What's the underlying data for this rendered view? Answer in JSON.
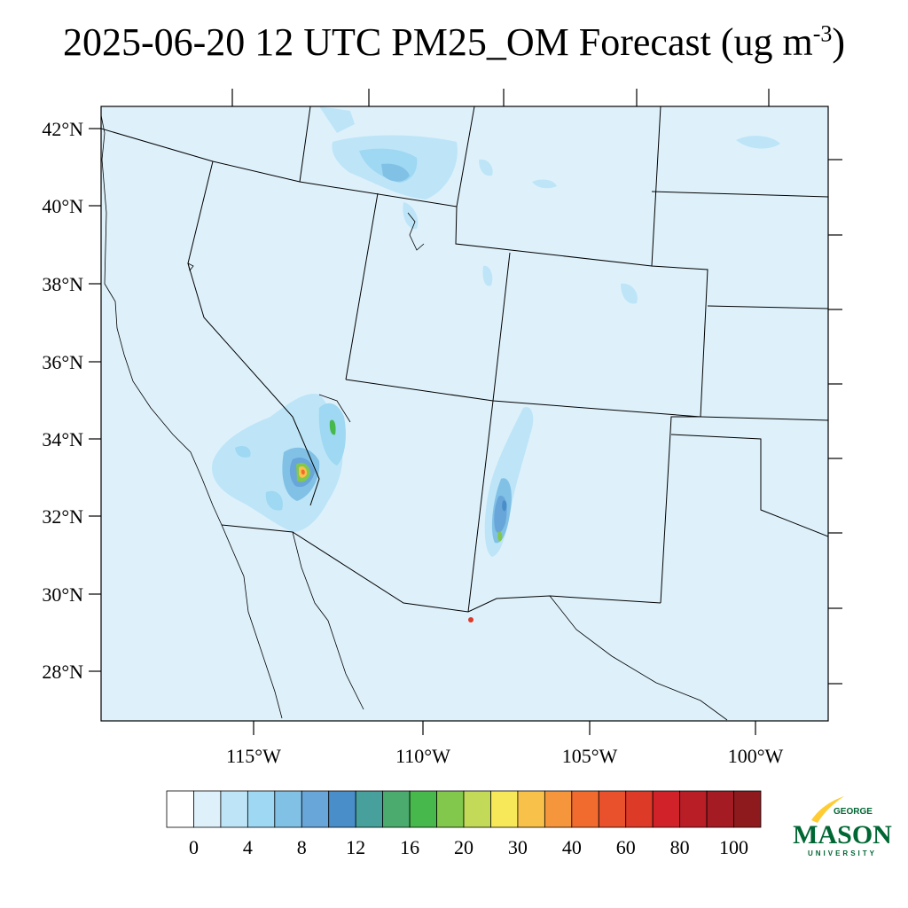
{
  "title": {
    "prefix": "2025-06-20 12 UTC PM25_OM Forecast (ug m",
    "superscript": "-3",
    "suffix": ")"
  },
  "map": {
    "lat_labels": [
      "42°N",
      "40°N",
      "38°N",
      "36°N",
      "34°N",
      "32°N",
      "30°N",
      "28°N"
    ],
    "lon_labels": [
      "115°W",
      "110°W",
      "105°W",
      "100°W"
    ],
    "background_color": "#def1fb"
  },
  "colorbar": {
    "colors": [
      "#ffffff",
      "#def1fb",
      "#bde5f7",
      "#9ed8f2",
      "#82c1e6",
      "#68a6da",
      "#4a8ec9",
      "#47a09c",
      "#4baa6e",
      "#47b84b",
      "#82c84c",
      "#c2da57",
      "#f7e85a",
      "#f7c14a",
      "#f6963c",
      "#f26b2e",
      "#e9502c",
      "#de3a28",
      "#d12229",
      "#b91e27",
      "#a51b24",
      "#8e1a1d"
    ],
    "labels": [
      "0",
      "4",
      "8",
      "12",
      "16",
      "20",
      "30",
      "40",
      "60",
      "80",
      "100"
    ]
  },
  "logo": {
    "top": "GEORGE",
    "main": "MASON",
    "bottom": "UNIVERSITY",
    "color_green": "#006633",
    "color_gold": "#ffcc33"
  }
}
